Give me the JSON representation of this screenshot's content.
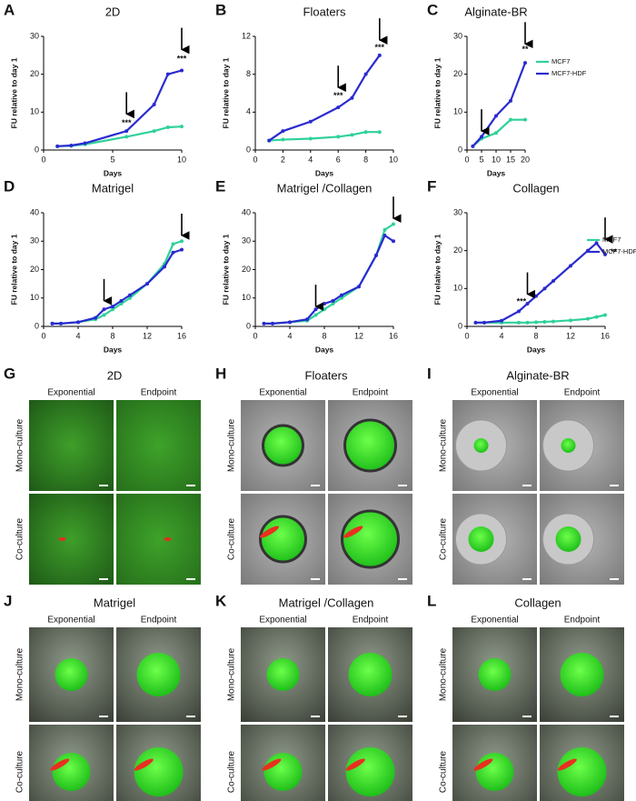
{
  "chart_data": [
    {
      "type": "line",
      "label": "A",
      "title": "2D",
      "xlabel": "Days",
      "ylabel": "FU relative to day 1",
      "xlim": [
        0,
        10
      ],
      "xticks": [
        0,
        5,
        10
      ],
      "ylim": [
        0,
        30
      ],
      "yticks": [
        0,
        10,
        20,
        30
      ],
      "x": [
        1,
        2,
        3,
        6,
        8,
        9,
        10
      ],
      "series": [
        {
          "name": "MCF7",
          "color": "#2fd19a",
          "values": [
            1,
            1.1,
            1.5,
            3.5,
            5,
            6,
            6.2
          ]
        },
        {
          "name": "MCF7-HDF",
          "color": "#2a2ad0",
          "values": [
            1,
            1.2,
            1.8,
            5,
            12,
            20,
            21
          ]
        }
      ],
      "annotations": [
        {
          "text": "***",
          "x": 6,
          "y": 7
        },
        {
          "text": "***",
          "x": 10,
          "y": 24
        }
      ],
      "arrows": [
        {
          "x": 6,
          "y": 9.5
        },
        {
          "x": 10,
          "y": 26.5
        }
      ]
    },
    {
      "type": "line",
      "label": "B",
      "title": "Floaters",
      "xlabel": "Days",
      "ylabel": "FU relative to day 1",
      "xlim": [
        0,
        10
      ],
      "xticks": [
        0,
        2,
        4,
        6,
        8,
        10
      ],
      "ylim": [
        0,
        12
      ],
      "yticks": [
        0,
        4,
        8,
        12
      ],
      "x": [
        1,
        2,
        4,
        6,
        7,
        8,
        9
      ],
      "series": [
        {
          "name": "MCF7",
          "color": "#2fd19a",
          "values": [
            1,
            1.1,
            1.2,
            1.4,
            1.6,
            1.9,
            1.9
          ]
        },
        {
          "name": "MCF7-HDF",
          "color": "#2a2ad0",
          "values": [
            1,
            2,
            3,
            4.5,
            5.5,
            8,
            10
          ]
        }
      ],
      "annotations": [
        {
          "text": "***",
          "x": 6,
          "y": 5.7
        },
        {
          "text": "***",
          "x": 9,
          "y": 10.8
        }
      ],
      "arrows": [
        {
          "x": 6,
          "y": 6.6
        },
        {
          "x": 9,
          "y": 11.6
        }
      ]
    },
    {
      "type": "line",
      "label": "C",
      "title": "Alginate-BR",
      "xlabel": "Days",
      "ylabel": "FU relative to day 1",
      "xlim": [
        0,
        20
      ],
      "xticks": [
        0,
        5,
        10,
        15,
        20
      ],
      "ylim": [
        0,
        30
      ],
      "yticks": [
        0,
        10,
        20,
        30
      ],
      "x": [
        2,
        5,
        10,
        15,
        20
      ],
      "series": [
        {
          "name": "MCF7",
          "color": "#2fd19a",
          "values": [
            1,
            3,
            4.5,
            8,
            8
          ]
        },
        {
          "name": "MCF7-HDF",
          "color": "#2a2ad0",
          "values": [
            1,
            3.5,
            9,
            13,
            23
          ]
        }
      ],
      "legend": "right",
      "annotations": [
        {
          "text": "**",
          "x": 20,
          "y": 26.5
        }
      ],
      "arrows": [
        {
          "x": 5,
          "y": 5
        },
        {
          "x": 20,
          "y": 28
        }
      ]
    },
    {
      "type": "line",
      "label": "D",
      "title": "Matrigel",
      "xlabel": "Days",
      "ylabel": "FU relative to day 1",
      "xlim": [
        0,
        16
      ],
      "xticks": [
        0,
        4,
        8,
        12,
        16
      ],
      "ylim": [
        0,
        40
      ],
      "yticks": [
        0,
        10,
        20,
        30,
        40
      ],
      "x": [
        1,
        2,
        4,
        6,
        7,
        8,
        9,
        10,
        12,
        14,
        15,
        16
      ],
      "series": [
        {
          "name": "MCF7",
          "color": "#2fd19a",
          "values": [
            1,
            1,
            1.5,
            2.5,
            4,
            6,
            8,
            10,
            15,
            22,
            29,
            30
          ]
        },
        {
          "name": "MCF7-HDF",
          "color": "#2a2ad0",
          "values": [
            1,
            1,
            1.5,
            3,
            6,
            7,
            9,
            11,
            15,
            21,
            26,
            27
          ]
        }
      ],
      "annotations": [],
      "arrows": [
        {
          "x": 7,
          "y": 9
        },
        {
          "x": 16,
          "y": 32
        }
      ]
    },
    {
      "type": "line",
      "label": "E",
      "title": "Matrigel /Collagen",
      "xlabel": "Days",
      "ylabel": "FU relative to day 1",
      "xlim": [
        0,
        16
      ],
      "xticks": [
        0,
        4,
        8,
        12,
        16
      ],
      "ylim": [
        0,
        40
      ],
      "yticks": [
        0,
        10,
        20,
        30,
        40
      ],
      "x": [
        1,
        2,
        4,
        6,
        7,
        8,
        9,
        10,
        12,
        14,
        15,
        16
      ],
      "series": [
        {
          "name": "MCF7",
          "color": "#2fd19a",
          "values": [
            1,
            1,
            1.5,
            2,
            4,
            6,
            8,
            10,
            14,
            25,
            34,
            36
          ]
        },
        {
          "name": "MCF7-HDF",
          "color": "#2a2ad0",
          "values": [
            1,
            1,
            1.5,
            2.5,
            6,
            8,
            9,
            11,
            14,
            25,
            32,
            30
          ]
        }
      ],
      "annotations": [],
      "arrows": [
        {
          "x": 7,
          "y": 7
        },
        {
          "x": 16,
          "y": 38
        }
      ]
    },
    {
      "type": "line",
      "label": "F",
      "title": "Collagen",
      "xlabel": "Days",
      "ylabel": "FU relative to day 1",
      "xlim": [
        0,
        16
      ],
      "xticks": [
        0,
        4,
        8,
        12,
        16
      ],
      "ylim": [
        0,
        30
      ],
      "yticks": [
        0,
        10,
        20,
        30
      ],
      "x": [
        1,
        2,
        4,
        6,
        7,
        8,
        9,
        10,
        12,
        14,
        15,
        16
      ],
      "series": [
        {
          "name": "MCF7",
          "color": "#2fd19a",
          "values": [
            1,
            1,
            1,
            1,
            1,
            1.1,
            1.2,
            1.3,
            1.6,
            2,
            2.5,
            3
          ]
        },
        {
          "name": "MCF7-HDF",
          "color": "#2a2ad0",
          "values": [
            1,
            1,
            1.5,
            4,
            6,
            8,
            10,
            12,
            16,
            20,
            22,
            19
          ]
        }
      ],
      "legend": "inside",
      "annotations": [
        {
          "text": "***",
          "x": 6.3,
          "y": 6.5
        },
        {
          "text": "**",
          "x": 17,
          "y": 19.5
        }
      ],
      "arrows": [
        {
          "x": 7,
          "y": 8.5
        },
        {
          "x": 16,
          "y": 23
        }
      ]
    }
  ],
  "images": [
    {
      "label": "G",
      "title": "2D",
      "columns": [
        "Exponential",
        "Endpoint"
      ],
      "rows": [
        "Mono-culture",
        "Co-culture"
      ]
    },
    {
      "label": "H",
      "title": "Floaters",
      "columns": [
        "Exponential",
        "Endpoint"
      ],
      "rows": [
        "Mono-culture",
        "Co-culture"
      ]
    },
    {
      "label": "I",
      "title": "Alginate-BR",
      "columns": [
        "Exponential",
        "Endpoint"
      ],
      "rows": [
        "Mono-culture",
        "Co-culture"
      ]
    },
    {
      "label": "J",
      "title": "Matrigel",
      "columns": [
        "Exponential",
        "Endpoint"
      ],
      "rows": [
        "Mono-culture",
        "Co-culture"
      ]
    },
    {
      "label": "K",
      "title": "Matrigel /Collagen",
      "columns": [
        "Exponential",
        "Endpoint"
      ],
      "rows": [
        "Mono-culture",
        "Co-culture"
      ]
    },
    {
      "label": "L",
      "title": "Collagen",
      "columns": [
        "Exponential",
        "Endpoint"
      ],
      "rows": [
        "Mono-culture",
        "Co-culture"
      ]
    }
  ]
}
